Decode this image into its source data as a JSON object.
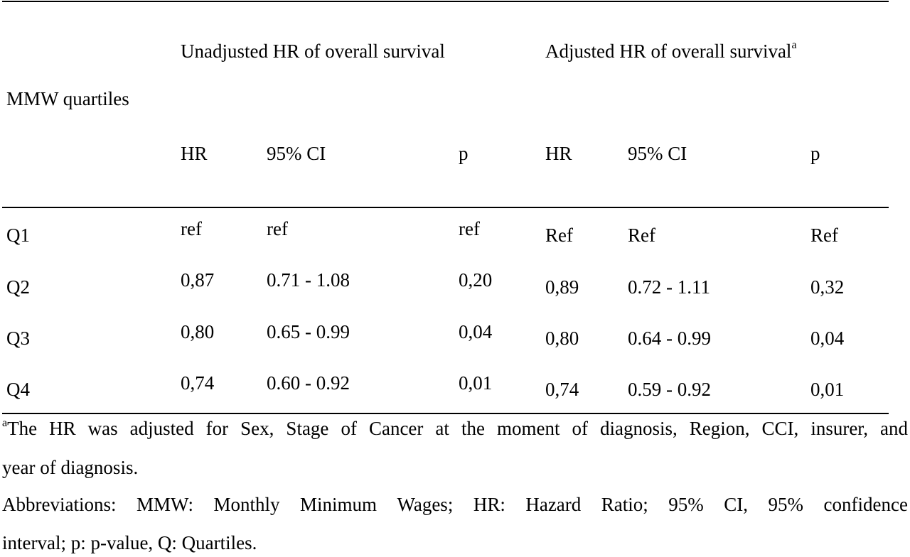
{
  "table": {
    "row_header_label": "MMW quartiles",
    "groups": [
      {
        "label": "Unadjusted HR of overall survival",
        "superscript": ""
      },
      {
        "label": "Adjusted HR of overall survival",
        "superscript": "a"
      }
    ],
    "subheaders": [
      "HR",
      "95% CI",
      "p",
      "HR",
      "95% CI",
      "p"
    ],
    "rows": [
      {
        "label": "Q1",
        "cells": [
          "ref",
          "ref",
          "ref",
          "Ref",
          "Ref",
          "Ref"
        ]
      },
      {
        "label": "Q2",
        "cells": [
          "0,87",
          "0.71 - 1.08",
          "0,20",
          "0,89",
          "0.72 - 1.11",
          "0,32"
        ]
      },
      {
        "label": "Q3",
        "cells": [
          "0,80",
          "0.65 - 0.99",
          "0,04",
          "0,80",
          "0.64 - 0.99",
          "0,04"
        ]
      },
      {
        "label": "Q4",
        "cells": [
          "0,74",
          "0.60 - 0.92",
          "0,01",
          "0,74",
          "0.59 - 0.92",
          "0,01"
        ]
      }
    ]
  },
  "footnotes": {
    "note_a_marker": "a",
    "note_a_line1": "The HR was adjusted for Sex, Stage of Cancer at the moment of diagnosis, Region, CCI, insurer, and",
    "note_a_line2": "year of diagnosis.",
    "abbrev_line1": "Abbreviations: MMW: Monthly Minimum Wages; HR: Hazard Ratio; 95% CI, 95% confidence",
    "abbrev_line2": "interval; p: p-value, Q: Quartiles."
  }
}
